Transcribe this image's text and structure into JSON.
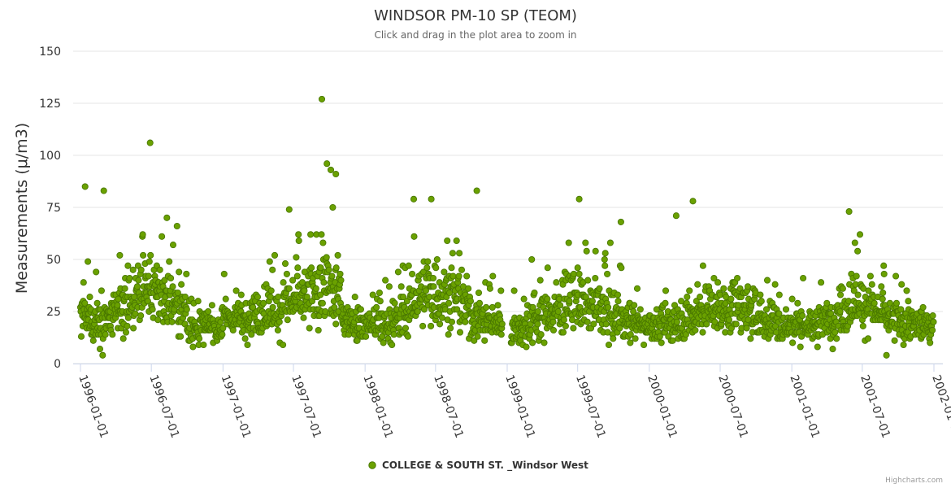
{
  "chart_data": {
    "type": "scatter",
    "title": "WINDSOR PM-10 SP (TEOM)",
    "subtitle": "Click and drag in the plot area to zoom in",
    "xlabel": "",
    "ylabel": "Measurements (μ/m3)",
    "ylim": [
      0,
      150
    ],
    "xlim": [
      "1996-01-01",
      "2002-01-01"
    ],
    "yticks": [
      0,
      25,
      50,
      75,
      100,
      125,
      150
    ],
    "xticks": [
      "1996-01-01",
      "1996-07-01",
      "1997-01-01",
      "1997-07-01",
      "1998-01-01",
      "1998-07-01",
      "1999-01-01",
      "1999-07-01",
      "2000-01-01",
      "2000-07-01",
      "2001-01-01",
      "2001-07-01",
      "2002-01-01"
    ],
    "grid": "horizontal",
    "legend_position": "bottom-center",
    "series": [
      {
        "name": "COLLEGE & SOUTH ST. _Windsor West",
        "color": "#6aa100",
        "notable_points": [
          {
            "x": "1996-01-13",
            "y": 85
          },
          {
            "x": "1996-03-01",
            "y": 83
          },
          {
            "x": "1996-06-28",
            "y": 106
          },
          {
            "x": "1996-08-10",
            "y": 70
          },
          {
            "x": "1996-09-05",
            "y": 66
          },
          {
            "x": "1997-06-20",
            "y": 74
          },
          {
            "x": "1997-09-12",
            "y": 127
          },
          {
            "x": "1997-09-25",
            "y": 96
          },
          {
            "x": "1997-10-05",
            "y": 93
          },
          {
            "x": "1997-10-18",
            "y": 91
          },
          {
            "x": "1997-10-10",
            "y": 75
          },
          {
            "x": "1998-05-06",
            "y": 79
          },
          {
            "x": "1998-06-20",
            "y": 79
          },
          {
            "x": "1998-10-15",
            "y": 83
          },
          {
            "x": "1999-07-05",
            "y": 79
          },
          {
            "x": "1999-10-20",
            "y": 68
          },
          {
            "x": "2000-03-10",
            "y": 71
          },
          {
            "x": "2000-04-22",
            "y": 78
          },
          {
            "x": "2001-05-28",
            "y": 73
          },
          {
            "x": "2001-09-01",
            "y": 4
          }
        ],
        "distribution": {
          "1996-01": [
            22,
            10
          ],
          "1996-02": [
            20,
            10
          ],
          "1996-03": [
            21,
            9
          ],
          "1996-04": [
            26,
            12
          ],
          "1996-05": [
            30,
            13
          ],
          "1996-06": [
            34,
            14
          ],
          "1996-07": [
            33,
            14
          ],
          "1996-08": [
            31,
            13
          ],
          "1996-09": [
            26,
            11
          ],
          "1996-10": [
            16,
            7
          ],
          "1996-11": [
            18,
            7
          ],
          "1996-12": [
            17,
            7
          ],
          "1997-01": [
            22,
            8
          ],
          "1997-02": [
            21,
            8
          ],
          "1997-03": [
            24,
            9
          ],
          "1997-04": [
            25,
            11
          ],
          "1997-05": [
            24,
            10
          ],
          "1997-06": [
            29,
            14
          ],
          "1997-07": [
            31,
            15
          ],
          "1997-08": [
            33,
            15
          ],
          "1997-09": [
            38,
            18
          ],
          "1997-10": [
            33,
            16
          ],
          "1997-11": [
            22,
            8
          ],
          "1997-12": [
            19,
            8
          ],
          "1998-01": [
            19,
            8
          ],
          "1998-02": [
            18,
            8
          ],
          "1998-03": [
            20,
            9
          ],
          "1998-04": [
            26,
            12
          ],
          "1998-05": [
            32,
            14
          ],
          "1998-06": [
            34,
            14
          ],
          "1998-07": [
            33,
            13
          ],
          "1998-08": [
            32,
            13
          ],
          "1998-09": [
            27,
            11
          ],
          "1998-10": [
            22,
            10
          ],
          "1998-11": [
            20,
            9
          ],
          "1998-12": [
            19,
            9
          ],
          "1999-01": [
            17,
            7
          ],
          "1999-02": [
            18,
            8
          ],
          "1999-03": [
            22,
            10
          ],
          "1999-04": [
            24,
            10
          ],
          "1999-05": [
            26,
            11
          ],
          "1999-06": [
            29,
            12
          ],
          "1999-07": [
            28,
            12
          ],
          "1999-08": [
            27,
            12
          ],
          "1999-09": [
            24,
            11
          ],
          "1999-10": [
            23,
            11
          ],
          "1999-11": [
            20,
            9
          ],
          "1999-12": [
            19,
            8
          ],
          "2000-01": [
            18,
            7
          ],
          "2000-02": [
            19,
            8
          ],
          "2000-03": [
            21,
            9
          ],
          "2000-04": [
            22,
            10
          ],
          "2000-05": [
            26,
            11
          ],
          "2000-06": [
            27,
            11
          ],
          "2000-07": [
            26,
            11
          ],
          "2000-08": [
            28,
            12
          ],
          "2000-09": [
            25,
            11
          ],
          "2000-10": [
            21,
            9
          ],
          "2000-11": [
            19,
            8
          ],
          "2000-12": [
            18,
            8
          ],
          "2001-01": [
            18,
            7
          ],
          "2001-02": [
            18,
            7
          ],
          "2001-03": [
            21,
            8
          ],
          "2001-04": [
            22,
            9
          ],
          "2001-05": [
            26,
            11
          ],
          "2001-06": [
            29,
            12
          ],
          "2001-07": [
            27,
            11
          ],
          "2001-08": [
            24,
            10
          ],
          "2001-09": [
            21,
            9
          ],
          "2001-10": [
            20,
            9
          ],
          "2001-11": [
            19,
            8
          ],
          "2001-12": [
            18,
            8
          ]
        },
        "gap": [
          "1998-12-20",
          "1999-01-10"
        ]
      }
    ]
  },
  "credits": "Highcharts.com"
}
